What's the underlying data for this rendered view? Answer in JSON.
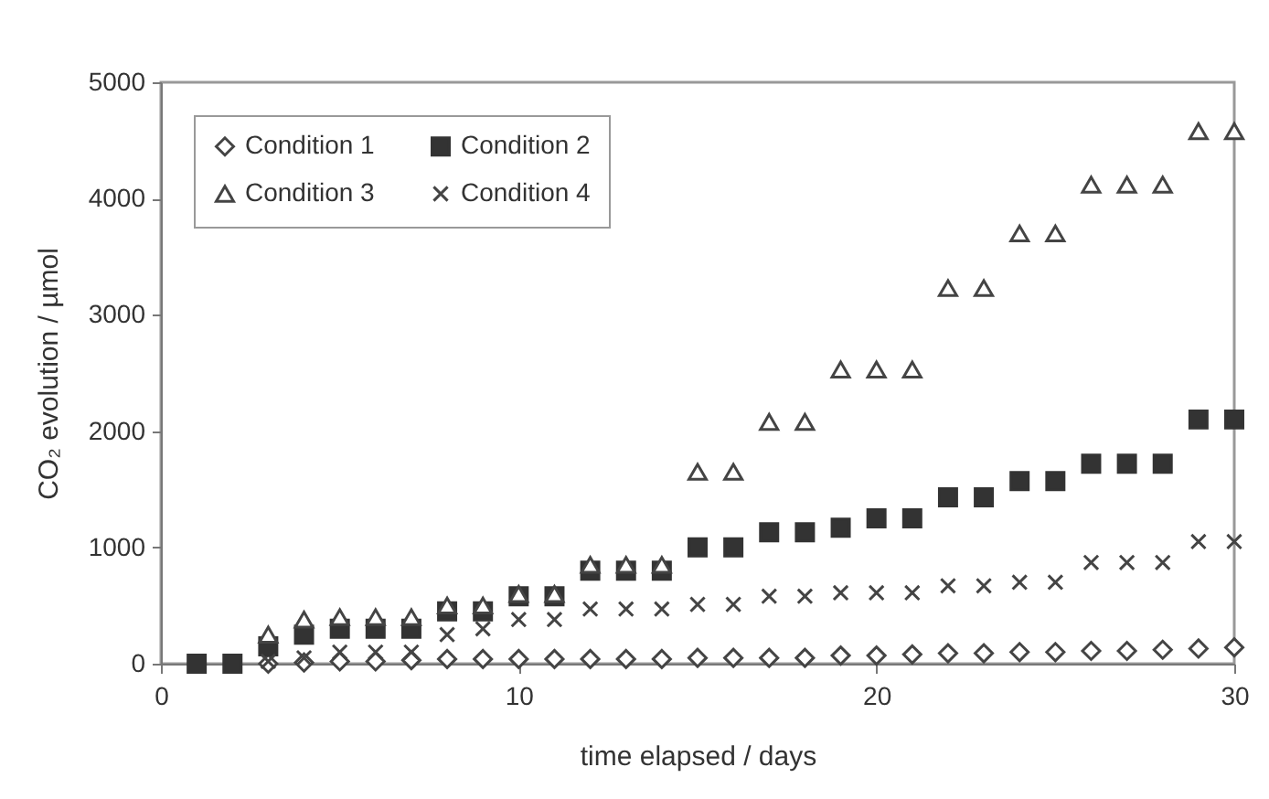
{
  "chart_data": {
    "type": "scatter",
    "xlabel": "time elapsed / days",
    "ylabel": "CO₂ evolution / µmol",
    "x": [
      1,
      2,
      3,
      4,
      5,
      6,
      7,
      8,
      9,
      10,
      11,
      12,
      13,
      14,
      15,
      16,
      17,
      18,
      19,
      20,
      21,
      22,
      23,
      24,
      25,
      26,
      27,
      28,
      29,
      30
    ],
    "series": [
      {
        "name": "Condition 1",
        "color": "#444444",
        "marker": "diamond",
        "values": [
          null,
          null,
          0,
          10,
          20,
          20,
          30,
          40,
          40,
          40,
          40,
          40,
          40,
          40,
          50,
          50,
          50,
          50,
          70,
          70,
          80,
          90,
          90,
          100,
          100,
          110,
          110,
          120,
          130,
          140
        ]
      },
      {
        "name": "Condition 2",
        "color": "#333333",
        "marker": "square",
        "values": [
          0,
          0,
          150,
          250,
          300,
          300,
          300,
          450,
          450,
          580,
          580,
          800,
          800,
          800,
          1000,
          1000,
          1130,
          1130,
          1170,
          1250,
          1250,
          1430,
          1430,
          1570,
          1570,
          1720,
          1720,
          1720,
          2100,
          2100
        ]
      },
      {
        "name": "Condition 3",
        "color": "#444444",
        "marker": "triangle",
        "values": [
          null,
          null,
          250,
          380,
          400,
          400,
          400,
          500,
          500,
          600,
          600,
          850,
          850,
          850,
          1650,
          1650,
          2080,
          2080,
          2530,
          2530,
          2530,
          3230,
          3230,
          3700,
          3700,
          4120,
          4120,
          4120,
          4580,
          4580
        ]
      },
      {
        "name": "Condition 4",
        "color": "#444444",
        "marker": "cross",
        "values": [
          null,
          null,
          20,
          50,
          100,
          100,
          100,
          250,
          300,
          380,
          380,
          470,
          470,
          470,
          510,
          510,
          580,
          580,
          610,
          610,
          610,
          670,
          670,
          700,
          700,
          870,
          870,
          870,
          1050,
          1050
        ]
      }
    ],
    "xlim": [
      0,
      30
    ],
    "xticks": [
      0,
      10,
      20,
      30
    ],
    "ylim": [
      0,
      5000
    ],
    "yticks": [
      0,
      1000,
      2000,
      3000,
      4000,
      5000
    ],
    "grid": false,
    "legend": "top left"
  }
}
